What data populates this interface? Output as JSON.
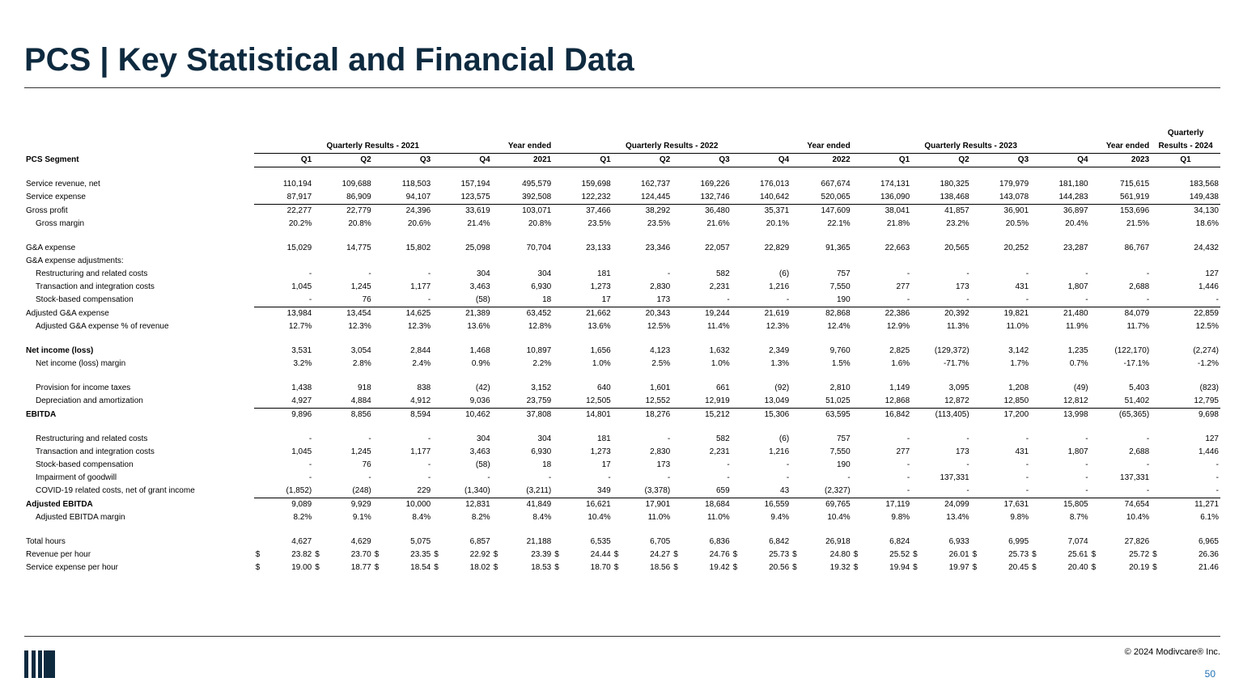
{
  "title": "PCS | Key Statistical and Financial Data",
  "segment_label": "PCS Segment",
  "groups": {
    "q2021": "Quarterly Results - 2021",
    "y2021": "Year ended",
    "q2022": "Quarterly Results - 2022",
    "y2022": "Year ended",
    "q2023": "Quarterly Results - 2023",
    "y2023": "Year ended",
    "q2024_line1": "Quarterly",
    "q2024_line2": "Results - 2024"
  },
  "columns": [
    "Q1",
    "Q2",
    "Q3",
    "Q4",
    "2021",
    "Q1",
    "Q2",
    "Q3",
    "Q4",
    "2022",
    "Q1",
    "Q2",
    "Q3",
    "Q4",
    "2023",
    "Q1"
  ],
  "rows": [
    {
      "label": "Service revenue, net",
      "values": [
        "110,194",
        "109,688",
        "118,503",
        "157,194",
        "495,579",
        "159,698",
        "162,737",
        "169,226",
        "176,013",
        "667,674",
        "174,131",
        "180,325",
        "179,979",
        "181,180",
        "715,615",
        "183,568"
      ]
    },
    {
      "label": "Service expense",
      "values": [
        "87,917",
        "86,909",
        "94,107",
        "123,575",
        "392,508",
        "122,232",
        "124,445",
        "132,746",
        "140,642",
        "520,065",
        "136,090",
        "138,468",
        "143,078",
        "144,283",
        "561,919",
        "149,438"
      ]
    },
    {
      "label": "Gross profit",
      "values": [
        "22,277",
        "22,779",
        "24,396",
        "33,619",
        "103,071",
        "37,466",
        "38,292",
        "36,480",
        "35,371",
        "147,609",
        "38,041",
        "41,857",
        "36,901",
        "36,897",
        "153,696",
        "34,130"
      ]
    },
    {
      "label": "Gross margin",
      "values": [
        "20.2%",
        "20.8%",
        "20.6%",
        "21.4%",
        "20.8%",
        "23.5%",
        "23.5%",
        "21.6%",
        "20.1%",
        "22.1%",
        "21.8%",
        "23.2%",
        "20.5%",
        "20.4%",
        "21.5%",
        "18.6%"
      ]
    },
    {
      "label": "G&A expense",
      "values": [
        "15,029",
        "14,775",
        "15,802",
        "25,098",
        "70,704",
        "23,133",
        "23,346",
        "22,057",
        "22,829",
        "91,365",
        "22,663",
        "20,565",
        "20,252",
        "23,287",
        "86,767",
        "24,432"
      ]
    },
    {
      "label": "G&A expense adjustments:",
      "values": []
    },
    {
      "label": "Restructuring and related costs",
      "values": [
        "-",
        "-",
        "-",
        "304",
        "304",
        "181",
        "-",
        "582",
        "(6)",
        "757",
        "-",
        "-",
        "-",
        "-",
        "-",
        "127"
      ]
    },
    {
      "label": "Transaction and integration costs",
      "values": [
        "1,045",
        "1,245",
        "1,177",
        "3,463",
        "6,930",
        "1,273",
        "2,830",
        "2,231",
        "1,216",
        "7,550",
        "277",
        "173",
        "431",
        "1,807",
        "2,688",
        "1,446"
      ]
    },
    {
      "label": "Stock-based compensation",
      "values": [
        "-",
        "76",
        "-",
        "(58)",
        "18",
        "17",
        "173",
        "-",
        "-",
        "190",
        "-",
        "-",
        "-",
        "-",
        "-",
        "-"
      ]
    },
    {
      "label": "Adjusted G&A expense",
      "values": [
        "13,984",
        "13,454",
        "14,625",
        "21,389",
        "63,452",
        "21,662",
        "20,343",
        "19,244",
        "21,619",
        "82,868",
        "22,386",
        "20,392",
        "19,821",
        "21,480",
        "84,079",
        "22,859"
      ]
    },
    {
      "label": "Adjusted G&A expense % of revenue",
      "values": [
        "12.7%",
        "12.3%",
        "12.3%",
        "13.6%",
        "12.8%",
        "13.6%",
        "12.5%",
        "11.4%",
        "12.3%",
        "12.4%",
        "12.9%",
        "11.3%",
        "11.0%",
        "11.9%",
        "11.7%",
        "12.5%"
      ]
    },
    {
      "label": "Net income (loss)",
      "values": [
        "3,531",
        "3,054",
        "2,844",
        "1,468",
        "10,897",
        "1,656",
        "4,123",
        "1,632",
        "2,349",
        "9,760",
        "2,825",
        "(129,372)",
        "3,142",
        "1,235",
        "(122,170)",
        "(2,274)"
      ]
    },
    {
      "label": "Net income (loss) margin",
      "values": [
        "3.2%",
        "2.8%",
        "2.4%",
        "0.9%",
        "2.2%",
        "1.0%",
        "2.5%",
        "1.0%",
        "1.3%",
        "1.5%",
        "1.6%",
        "-71.7%",
        "1.7%",
        "0.7%",
        "-17.1%",
        "-1.2%"
      ]
    },
    {
      "label": "Provision for income taxes",
      "values": [
        "1,438",
        "918",
        "838",
        "(42)",
        "3,152",
        "640",
        "1,601",
        "661",
        "(92)",
        "2,810",
        "1,149",
        "3,095",
        "1,208",
        "(49)",
        "5,403",
        "(823)"
      ]
    },
    {
      "label": "Depreciation and amortization",
      "values": [
        "4,927",
        "4,884",
        "4,912",
        "9,036",
        "23,759",
        "12,505",
        "12,552",
        "12,919",
        "13,049",
        "51,025",
        "12,868",
        "12,872",
        "12,850",
        "12,812",
        "51,402",
        "12,795"
      ]
    },
    {
      "label": "EBITDA",
      "values": [
        "9,896",
        "8,856",
        "8,594",
        "10,462",
        "37,808",
        "14,801",
        "18,276",
        "15,212",
        "15,306",
        "63,595",
        "16,842",
        "(113,405)",
        "17,200",
        "13,998",
        "(65,365)",
        "9,698"
      ]
    },
    {
      "label": "Restructuring and related costs",
      "values": [
        "-",
        "-",
        "-",
        "304",
        "304",
        "181",
        "-",
        "582",
        "(6)",
        "757",
        "-",
        "-",
        "-",
        "-",
        "-",
        "127"
      ]
    },
    {
      "label": "Transaction and integration costs",
      "values": [
        "1,045",
        "1,245",
        "1,177",
        "3,463",
        "6,930",
        "1,273",
        "2,830",
        "2,231",
        "1,216",
        "7,550",
        "277",
        "173",
        "431",
        "1,807",
        "2,688",
        "1,446"
      ]
    },
    {
      "label": "Stock-based compensation",
      "values": [
        "-",
        "76",
        "-",
        "(58)",
        "18",
        "17",
        "173",
        "-",
        "-",
        "190",
        "-",
        "-",
        "-",
        "-",
        "-",
        "-"
      ]
    },
    {
      "label": "Impairment of goodwill",
      "values": [
        "-",
        "-",
        "-",
        "-",
        "-",
        "-",
        "-",
        "-",
        "-",
        "-",
        "-",
        "137,331",
        "-",
        "-",
        "137,331",
        "-"
      ]
    },
    {
      "label": "COVID-19 related costs, net of grant income",
      "values": [
        "(1,852)",
        "(248)",
        "229",
        "(1,340)",
        "(3,211)",
        "349",
        "(3,378)",
        "659",
        "43",
        "(2,327)",
        "-",
        "-",
        "-",
        "-",
        "-",
        "-"
      ]
    },
    {
      "label": "Adjusted EBITDA",
      "values": [
        "9,089",
        "9,929",
        "10,000",
        "12,831",
        "41,849",
        "16,621",
        "17,901",
        "18,684",
        "16,559",
        "69,765",
        "17,119",
        "24,099",
        "17,631",
        "15,805",
        "74,654",
        "11,271"
      ]
    },
    {
      "label": "Adjusted EBITDA margin",
      "values": [
        "8.2%",
        "9.1%",
        "8.4%",
        "8.2%",
        "8.4%",
        "10.4%",
        "11.0%",
        "11.0%",
        "9.4%",
        "10.4%",
        "9.8%",
        "13.4%",
        "9.8%",
        "8.7%",
        "10.4%",
        "6.1%"
      ]
    },
    {
      "label": "Total hours",
      "values": [
        "4,627",
        "4,629",
        "5,075",
        "6,857",
        "21,188",
        "6,535",
        "6,705",
        "6,836",
        "6,842",
        "26,918",
        "6,824",
        "6,933",
        "6,995",
        "7,074",
        "27,826",
        "6,965"
      ]
    },
    {
      "label": "Revenue per hour",
      "values": [
        "23.82",
        "23.70",
        "23.35",
        "22.92",
        "23.39",
        "24.44",
        "24.27",
        "24.76",
        "25.73",
        "24.80",
        "25.52",
        "26.01",
        "25.73",
        "25.61",
        "25.72",
        "26.36"
      ]
    },
    {
      "label": "Service expense per hour",
      "values": [
        "19.00",
        "18.77",
        "18.54",
        "18.02",
        "18.53",
        "18.70",
        "18.56",
        "19.42",
        "20.56",
        "19.32",
        "19.94",
        "19.97",
        "20.45",
        "20.40",
        "20.19",
        "21.46"
      ]
    }
  ],
  "currency_symbol": "$",
  "copyright": "© 2024 Modivcare® Inc.",
  "page_number": "50",
  "colors": {
    "title": "#0e2a3f",
    "logo": "#0e2a3f",
    "page_number": "#1f6fb2"
  }
}
